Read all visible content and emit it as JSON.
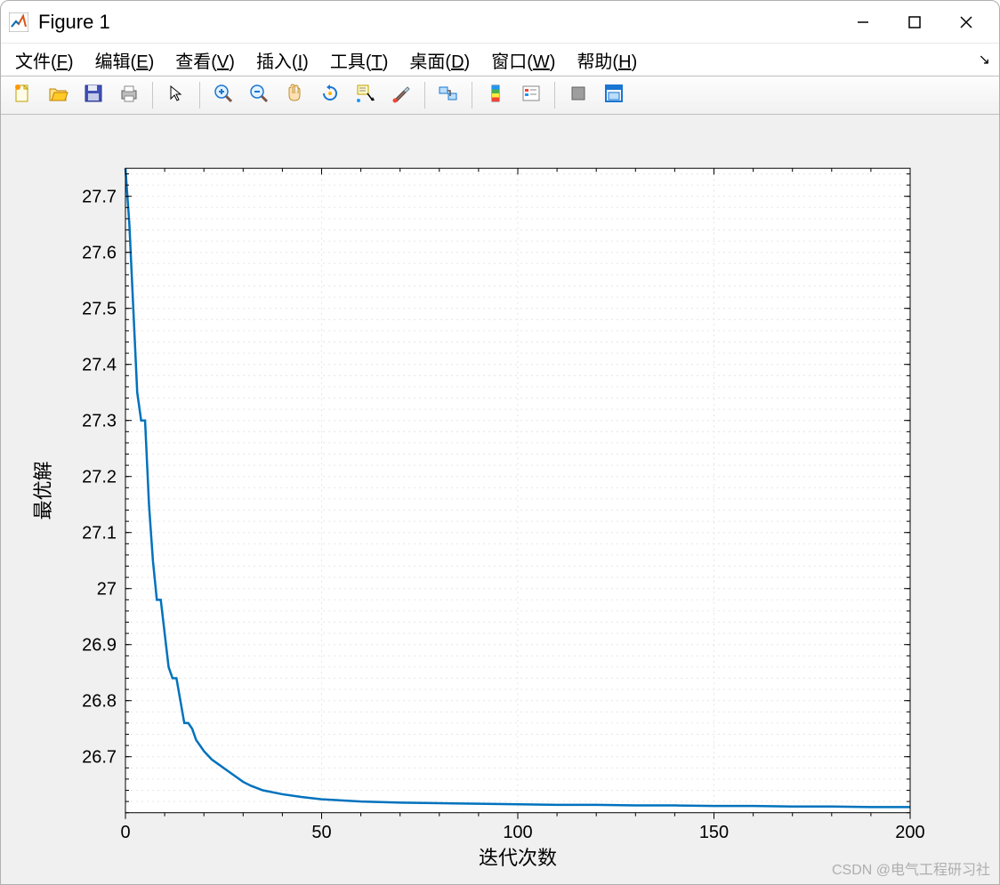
{
  "window": {
    "title": "Figure 1",
    "controls": {
      "min": "—",
      "max": "☐",
      "close": "✕"
    }
  },
  "menu": {
    "items": [
      {
        "label": "文件",
        "key": "F"
      },
      {
        "label": "编辑",
        "key": "E"
      },
      {
        "label": "查看",
        "key": "V"
      },
      {
        "label": "插入",
        "key": "I"
      },
      {
        "label": "工具",
        "key": "T"
      },
      {
        "label": "桌面",
        "key": "D"
      },
      {
        "label": "窗口",
        "key": "W"
      },
      {
        "label": "帮助",
        "key": "H"
      }
    ]
  },
  "toolbar": {
    "icons": [
      "new-file",
      "open-file",
      "save",
      "print",
      "|",
      "pointer",
      "|",
      "zoom-in",
      "zoom-out",
      "pan",
      "rotate",
      "data-cursor",
      "brush",
      "|",
      "link",
      "|",
      "colorbar",
      "legend",
      "|",
      "stop",
      "dock"
    ]
  },
  "chart": {
    "type": "line",
    "xlabel": "迭代次数",
    "ylabel": "最优解",
    "xlim": [
      0,
      200
    ],
    "ylim": [
      26.6,
      27.75
    ],
    "xticks": [
      0,
      50,
      100,
      150,
      200
    ],
    "yticks": [
      26.7,
      26.8,
      26.9,
      27,
      27.1,
      27.2,
      27.3,
      27.4,
      27.5,
      27.6,
      27.7
    ],
    "minor_xstep": 10,
    "minor_ystep": 0.02,
    "line_color": "#0072bd",
    "line_width": 2.5,
    "background_color": "#ffffff",
    "grid_color": "#e6e6e6",
    "axis_color": "#000000",
    "tick_fontsize": 20,
    "label_fontsize": 22,
    "data": {
      "x": [
        0,
        1,
        2,
        3,
        4,
        5,
        6,
        7,
        8,
        9,
        10,
        11,
        12,
        13,
        14,
        15,
        16,
        17,
        18,
        19,
        20,
        22,
        24,
        26,
        28,
        30,
        32,
        35,
        40,
        45,
        50,
        55,
        60,
        70,
        80,
        90,
        100,
        110,
        120,
        130,
        140,
        150,
        160,
        170,
        180,
        190,
        200
      ],
      "y": [
        27.75,
        27.65,
        27.5,
        27.35,
        27.3,
        27.3,
        27.15,
        27.05,
        26.98,
        26.98,
        26.92,
        26.86,
        26.84,
        26.84,
        26.8,
        26.76,
        26.76,
        26.75,
        26.73,
        26.72,
        26.71,
        26.695,
        26.685,
        26.675,
        26.665,
        26.655,
        26.648,
        26.64,
        26.633,
        26.628,
        26.624,
        26.622,
        26.62,
        26.618,
        26.617,
        26.616,
        26.615,
        26.614,
        26.614,
        26.613,
        26.613,
        26.612,
        26.612,
        26.611,
        26.611,
        26.61,
        26.61
      ]
    }
  },
  "watermark": "CSDN @电气工程研习社"
}
